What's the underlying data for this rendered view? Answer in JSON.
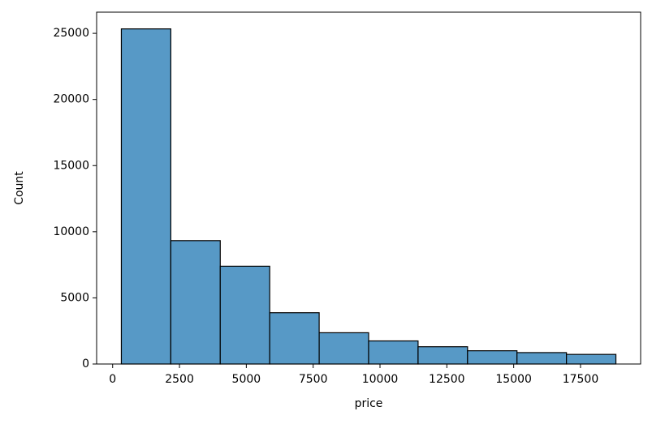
{
  "chart_data": {
    "type": "histogram",
    "x_label": "price",
    "y_label": "Count",
    "bins": [
      326,
      2175.7,
      4025.4,
      5875.1,
      7724.8,
      9574.5,
      11424.2,
      13273.9,
      15123.6,
      16973.3,
      18823
    ],
    "values": [
      25335,
      9328,
      7393,
      3878,
      2364,
      1745,
      1306,
      1002,
      863,
      726
    ],
    "color": "#5799c6",
    "xlim": [
      -599,
      19748
    ],
    "xticks": [
      0,
      2500,
      5000,
      7500,
      10000,
      12500,
      15000,
      17500
    ],
    "ylim": [
      0,
      26600
    ],
    "yticks": [
      0,
      5000,
      10000,
      15000,
      20000,
      25000
    ]
  }
}
